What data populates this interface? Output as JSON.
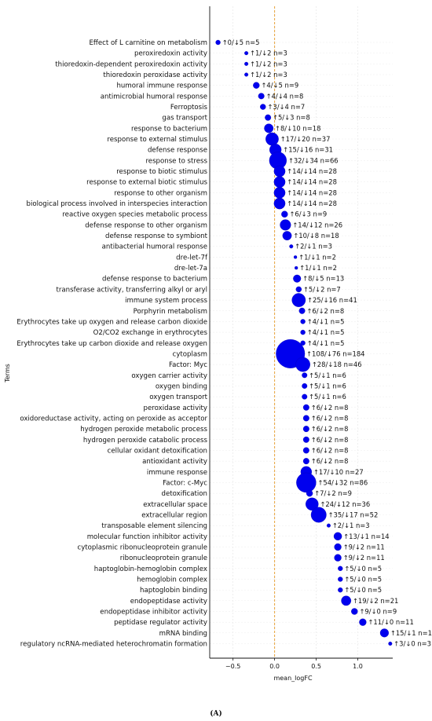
{
  "chart_data": {
    "type": "scatter",
    "xlabel": "mean_logFC",
    "ylabel": "Terms",
    "xlim": [
      -0.78,
      1.42
    ],
    "xticks": [
      -0.5,
      0.0,
      0.5,
      1.0
    ],
    "xtick_labels": [
      "−0.5",
      "0.0",
      "0.5",
      "1.0"
    ],
    "grid": true,
    "reference_line": {
      "x": 0,
      "color": "#e8a33a",
      "style": "dashed"
    },
    "point_color": "#0000ee",
    "caption": "(A)",
    "terms": [
      "Effect of L carnitine on metabolism",
      "peroxiredoxin activity",
      "thioredoxin-dependent peroxiredoxin activity",
      "thioredoxin peroxidase activity",
      "humoral immune response",
      "antimicrobial humoral response",
      "Ferroptosis",
      "gas transport",
      "response to bacterium",
      "response to external stimulus",
      "defense response",
      "response to stress",
      "response to biotic stimulus",
      "response to external biotic stimulus",
      "response to other organism",
      "biological process involved in interspecies interaction",
      "reactive oxygen species metabolic process",
      "defense response to other organism",
      "defense response to symbiont",
      "antibacterial humoral response",
      "dre-let-7f",
      "dre-let-7a",
      "defense response to bacterium",
      "transferase activity, transferring alkyl or aryl",
      "immune system process",
      "Porphyrin metabolism",
      "Erythrocytes take up oxygen and release carbon dioxide",
      "O2/CO2 exchange in erythrocytes",
      "Erythrocytes take up carbon dioxide and release oxygen",
      "cytoplasm",
      "Factor: Myc",
      "oxygen carrier activity",
      "oxygen binding",
      "oxygen transport",
      "peroxidase activity",
      "oxidoreductase activity, acting on peroxide as acceptor",
      "hydrogen peroxide metabolic process",
      "hydrogen peroxide catabolic process",
      "cellular oxidant detoxification",
      "antioxidant activity",
      "immune response",
      "Factor: c-Myc",
      "detoxification",
      "extracellular space",
      "extracellular region",
      "transposable element silencing",
      "molecular function inhibitor activity",
      "cytoplasmic ribonucleoprotein granule",
      "ribonucleoprotein granule",
      "haptoglobin-hemoglobin complex",
      "hemoglobin complex",
      "haptoglobin binding",
      "endopeptidase activity",
      "endopeptidase inhibitor activity",
      "peptidase regulator activity",
      "mRNA binding",
      "regulatory ncRNA-mediated heterochromatin formation"
    ],
    "mean_logFC": [
      -0.68,
      -0.34,
      -0.34,
      -0.34,
      -0.22,
      -0.16,
      -0.14,
      -0.08,
      -0.07,
      -0.03,
      0.01,
      0.04,
      0.06,
      0.06,
      0.06,
      0.06,
      0.12,
      0.13,
      0.15,
      0.2,
      0.25,
      0.26,
      0.27,
      0.29,
      0.29,
      0.33,
      0.34,
      0.34,
      0.34,
      0.19,
      0.34,
      0.36,
      0.36,
      0.36,
      0.38,
      0.38,
      0.38,
      0.38,
      0.38,
      0.38,
      0.38,
      0.38,
      0.42,
      0.45,
      0.53,
      0.65,
      0.76,
      0.76,
      0.76,
      0.79,
      0.79,
      0.79,
      0.86,
      0.96,
      1.06,
      1.32,
      1.39
    ],
    "up": [
      0,
      1,
      1,
      1,
      4,
      4,
      3,
      5,
      8,
      17,
      15,
      32,
      14,
      14,
      14,
      14,
      6,
      14,
      10,
      2,
      1,
      1,
      8,
      5,
      25,
      6,
      4,
      4,
      4,
      108,
      28,
      5,
      5,
      5,
      6,
      6,
      6,
      6,
      6,
      6,
      17,
      54,
      7,
      24,
      35,
      2,
      13,
      9,
      9,
      5,
      5,
      5,
      19,
      9,
      11,
      15,
      3
    ],
    "down": [
      5,
      2,
      2,
      2,
      5,
      4,
      4,
      3,
      10,
      20,
      16,
      34,
      14,
      14,
      14,
      14,
      3,
      12,
      8,
      1,
      1,
      1,
      5,
      2,
      16,
      2,
      1,
      1,
      1,
      76,
      18,
      1,
      1,
      1,
      2,
      2,
      2,
      2,
      2,
      2,
      10,
      32,
      2,
      12,
      17,
      1,
      1,
      2,
      2,
      0,
      0,
      0,
      2,
      0,
      0,
      1,
      0
    ],
    "n": [
      5,
      3,
      3,
      3,
      9,
      8,
      7,
      8,
      18,
      37,
      31,
      66,
      28,
      28,
      28,
      28,
      9,
      26,
      18,
      3,
      2,
      2,
      13,
      7,
      41,
      8,
      5,
      5,
      5,
      184,
      46,
      6,
      6,
      6,
      8,
      8,
      8,
      8,
      8,
      8,
      27,
      86,
      9,
      36,
      52,
      3,
      14,
      11,
      11,
      5,
      5,
      5,
      21,
      9,
      11,
      16,
      3
    ]
  }
}
